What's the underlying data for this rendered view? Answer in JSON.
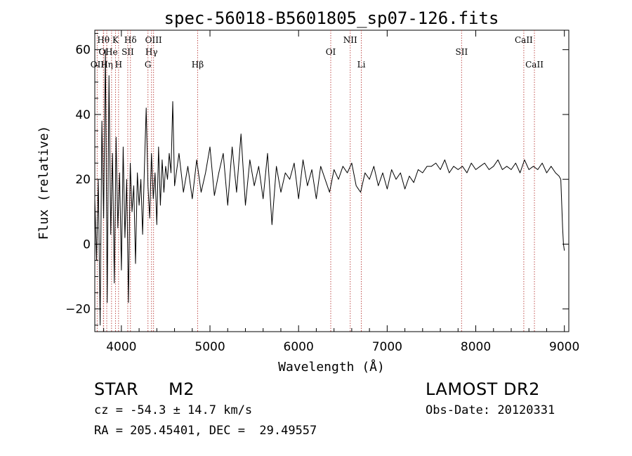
{
  "chart_data": {
    "type": "line",
    "title": "spec-56018-B5601805_sp07-126.fits",
    "xlabel": "Wavelength (Å)",
    "ylabel": "Flux (relative)",
    "xlim": [
      3700,
      9050
    ],
    "ylim": [
      -27,
      66
    ],
    "xticks": [
      4000,
      5000,
      6000,
      7000,
      8000,
      9000
    ],
    "yticks": [
      -20,
      0,
      20,
      40,
      60
    ],
    "grid": false,
    "line_color": "#000000",
    "marker_color": "#c0504d",
    "series": [
      {
        "x": [
          3700,
          3720,
          3740,
          3760,
          3780,
          3800,
          3820,
          3840,
          3860,
          3880,
          3900,
          3920,
          3940,
          3960,
          3980,
          4000,
          4020,
          4040,
          4060,
          4080,
          4100,
          4120,
          4140,
          4160,
          4180,
          4200,
          4220,
          4240,
          4260,
          4280,
          4300,
          4320,
          4340,
          4360,
          4380,
          4400,
          4420,
          4440,
          4460,
          4480,
          4500,
          4520,
          4540,
          4560,
          4580,
          4600,
          4650,
          4700,
          4750,
          4800,
          4850,
          4900,
          4950,
          5000,
          5050,
          5100,
          5150,
          5200,
          5250,
          5300,
          5350,
          5400,
          5450,
          5500,
          5550,
          5600,
          5650,
          5700,
          5750,
          5800,
          5850,
          5900,
          5950,
          6000,
          6050,
          6100,
          6150,
          6200,
          6250,
          6300,
          6350,
          6400,
          6450,
          6500,
          6550,
          6600,
          6650,
          6700,
          6750,
          6800,
          6850,
          6900,
          6950,
          7000,
          7050,
          7100,
          7150,
          7200,
          7250,
          7300,
          7350,
          7400,
          7450,
          7500,
          7550,
          7600,
          7650,
          7700,
          7750,
          7800,
          7850,
          7900,
          7950,
          8000,
          8050,
          8100,
          8150,
          8200,
          8250,
          8300,
          8350,
          8400,
          8450,
          8500,
          8550,
          8600,
          8650,
          8700,
          8750,
          8800,
          8850,
          8900,
          8940,
          8960,
          8980,
          8990,
          9000
        ],
        "y": [
          14,
          -5,
          20,
          -25,
          38,
          8,
          60,
          -18,
          52,
          3,
          28,
          -12,
          33,
          5,
          22,
          -8,
          30,
          2,
          20,
          -18,
          25,
          10,
          18,
          -6,
          22,
          12,
          20,
          3,
          24,
          42,
          18,
          8,
          28,
          14,
          22,
          6,
          30,
          12,
          26,
          16,
          24,
          20,
          28,
          22,
          44,
          18,
          28,
          16,
          24,
          14,
          26,
          16,
          22,
          30,
          15,
          22,
          28,
          12,
          30,
          16,
          34,
          12,
          26,
          18,
          24,
          14,
          28,
          6,
          24,
          16,
          22,
          20,
          25,
          14,
          26,
          18,
          23,
          14,
          24,
          20,
          16,
          23,
          20,
          24,
          22,
          25,
          18,
          16,
          22,
          20,
          24,
          18,
          22,
          17,
          23,
          20,
          22,
          17,
          21,
          19,
          23,
          22,
          24,
          24,
          25,
          23,
          26,
          22,
          24,
          23,
          24,
          22,
          25,
          23,
          24,
          25,
          23,
          24,
          26,
          23,
          24,
          23,
          25,
          22,
          26,
          23,
          24,
          23,
          25,
          22,
          24,
          22,
          21,
          20,
          5,
          0,
          -2
        ]
      }
    ],
    "line_markers": [
      {
        "label": "OII",
        "x": 3727,
        "row": 3
      },
      {
        "label": "Hθ",
        "x": 3797,
        "row": 1
      },
      {
        "label": "OI",
        "x": 3800,
        "row": 2
      },
      {
        "label": "Hη",
        "x": 3835,
        "row": 3
      },
      {
        "label": "He",
        "x": 3889,
        "row": 2
      },
      {
        "label": "K",
        "x": 3934,
        "row": 1
      },
      {
        "label": "H",
        "x": 3968,
        "row": 3
      },
      {
        "label": "SII",
        "x": 4072,
        "row": 2
      },
      {
        "label": "Hδ",
        "x": 4102,
        "row": 1
      },
      {
        "label": "G",
        "x": 4300,
        "row": 3
      },
      {
        "label": "Hγ",
        "x": 4340,
        "row": 2
      },
      {
        "label": "OIII",
        "x": 4363,
        "row": 1
      },
      {
        "label": "Hβ",
        "x": 4861,
        "row": 3
      },
      {
        "label": "OI",
        "x": 6363,
        "row": 2
      },
      {
        "label": "NII",
        "x": 6583,
        "row": 1
      },
      {
        "label": "Li",
        "x": 6708,
        "row": 3
      },
      {
        "label": "SII",
        "x": 7840,
        "row": 2
      },
      {
        "label": "CaII",
        "x": 8542,
        "row": 1
      },
      {
        "label": "CaII",
        "x": 8662,
        "row": 3
      }
    ]
  },
  "info": {
    "class_label": "STAR",
    "subclass": "M2",
    "survey": "LAMOST DR2",
    "redshift": "cz = -54.3 ± 14.7 km/s",
    "obs_date": "Obs-Date: 20120331",
    "coords": "RA = 205.45401, DEC =  29.49557"
  }
}
